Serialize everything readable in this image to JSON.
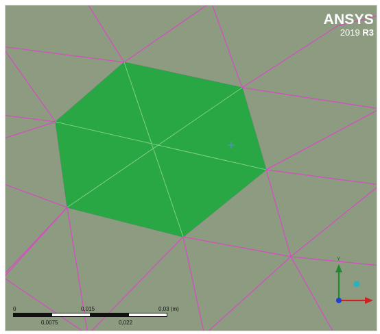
{
  "app": {
    "logo_name": "ANSYS",
    "logo_year": "2019",
    "logo_release": "R3"
  },
  "scale_bar": {
    "ticks_top": [
      "0",
      "0,015",
      "0,03 (m)"
    ],
    "ticks_bottom": [
      "0,0075",
      "0,022"
    ]
  },
  "triad": {
    "y_label": "Y",
    "axis_colors": {
      "x": "#cc2222",
      "y": "#1e8a2e",
      "z": "#1f3fcc",
      "iso": "#2ab0c0"
    }
  },
  "colors": {
    "background": "#8d9b80",
    "mesh_edges": "#d24fc0",
    "selected_face": "#29a744",
    "selected_edges": "#7fd088"
  }
}
